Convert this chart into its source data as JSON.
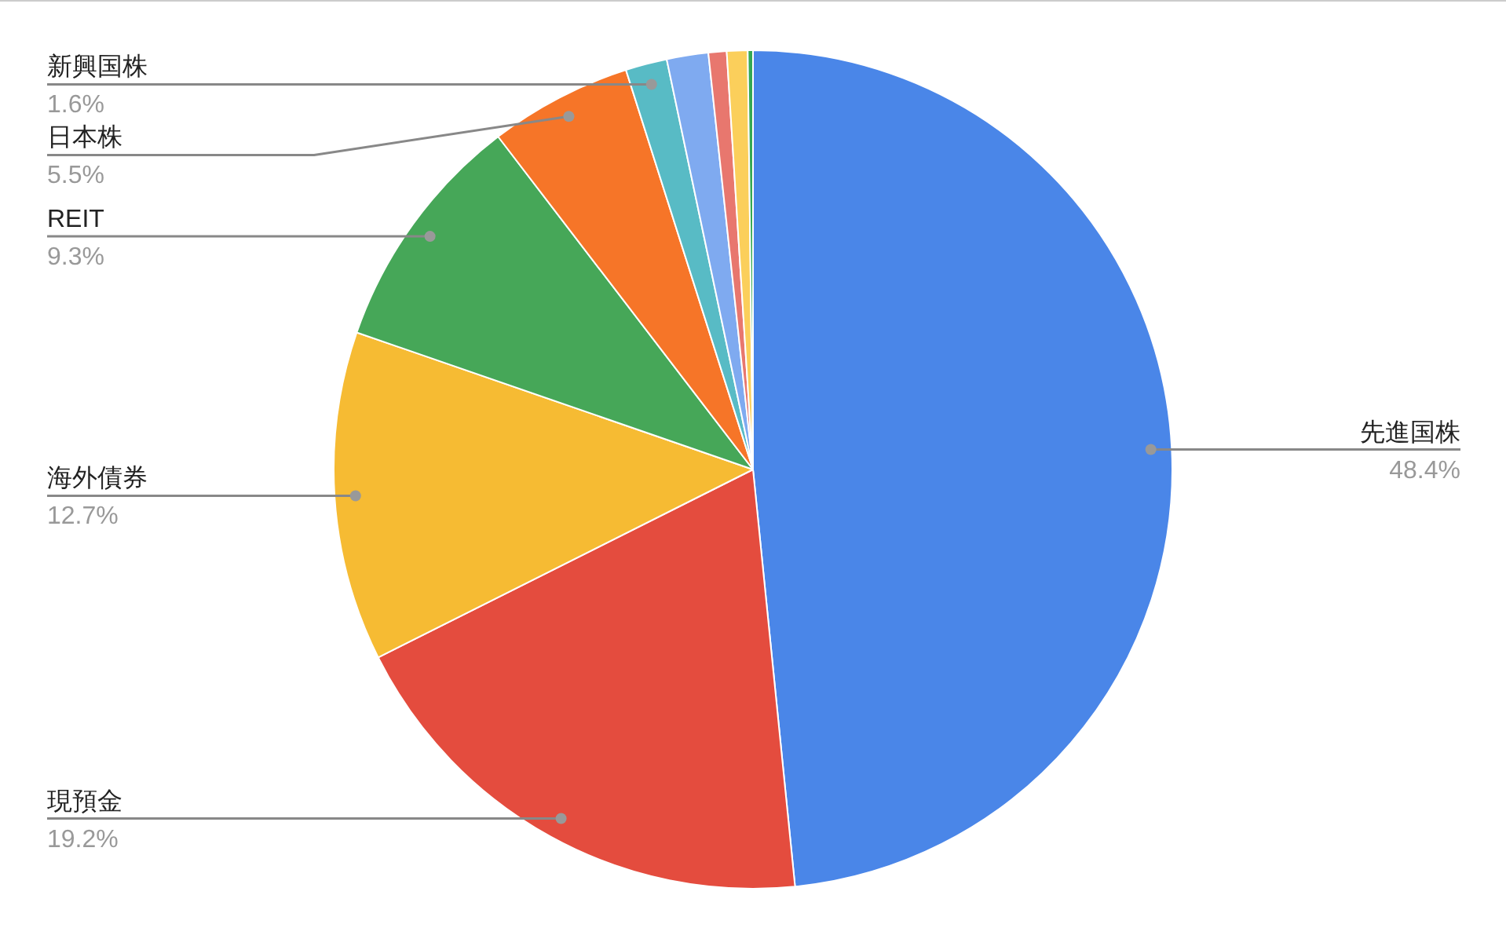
{
  "chart_data": {
    "type": "pie",
    "categories": [
      "先進国株",
      "現預金",
      "海外債券",
      "REIT",
      "日本株",
      "新興国株",
      null,
      null,
      null,
      null
    ],
    "values": [
      48.4,
      19.2,
      12.7,
      9.3,
      5.5,
      1.6,
      1.6,
      0.7,
      0.8,
      0.2
    ],
    "value_labels": [
      "48.4%",
      "19.2%",
      "12.7%",
      "9.3%",
      "5.5%",
      "1.6%",
      null,
      null,
      null,
      null
    ],
    "colors": [
      "#4a86e8",
      "#e44c3e",
      "#f6bb33",
      "#46a758",
      "#f67528",
      "#58bbc5",
      "#7faaf0",
      "#e8776e",
      "#fbcf5b",
      "#34a853"
    ],
    "legend": false
  }
}
